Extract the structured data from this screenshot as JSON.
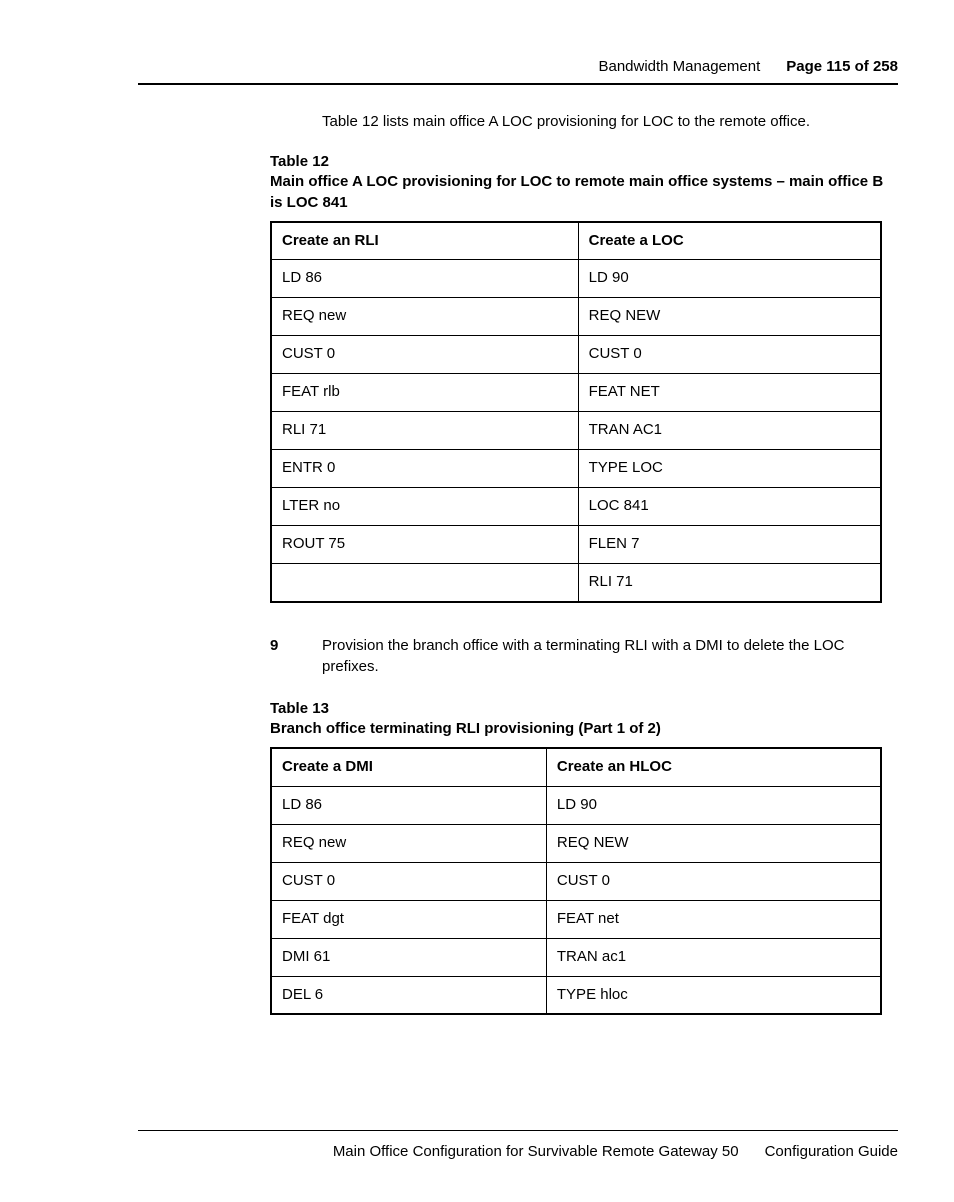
{
  "header": {
    "section": "Bandwidth Management",
    "page_label": "Page 115 of 258"
  },
  "intro": "Table 12 lists main office A LOC provisioning for LOC to the remote office.",
  "table12": {
    "caption_num": "Table 12",
    "caption_text": "Main office A LOC provisioning for LOC to remote main office systems – main office B is LOC 841",
    "headers": [
      "Create an RLI",
      "Create a LOC"
    ],
    "rows": [
      [
        "LD 86",
        "LD 90"
      ],
      [
        "REQ new",
        "REQ NEW"
      ],
      [
        "CUST 0",
        "CUST 0"
      ],
      [
        "FEAT rlb",
        "FEAT NET"
      ],
      [
        "RLI 71",
        "TRAN AC1"
      ],
      [
        "ENTR 0",
        "TYPE LOC"
      ],
      [
        "LTER no",
        "LOC 841"
      ],
      [
        "ROUT 75",
        "FLEN 7"
      ],
      [
        "",
        "RLI 71"
      ]
    ]
  },
  "step9": {
    "num": "9",
    "text": "Provision the branch office with a terminating RLI with a DMI to delete the LOC prefixes."
  },
  "table13": {
    "caption_num": "Table 13",
    "caption_text": "Branch office terminating RLI provisioning (Part 1 of 2)",
    "headers": [
      "Create a DMI",
      "Create an HLOC"
    ],
    "rows": [
      [
        "LD 86",
        "LD 90"
      ],
      [
        "REQ new",
        "REQ NEW"
      ],
      [
        "CUST 0",
        "CUST 0"
      ],
      [
        "FEAT dgt",
        "FEAT net"
      ],
      [
        "DMI 61",
        "TRAN ac1"
      ],
      [
        "DEL 6",
        "TYPE hloc"
      ]
    ]
  },
  "footer": {
    "left": "Main Office Configuration for Survivable Remote Gateway 50",
    "right": "Configuration Guide"
  }
}
